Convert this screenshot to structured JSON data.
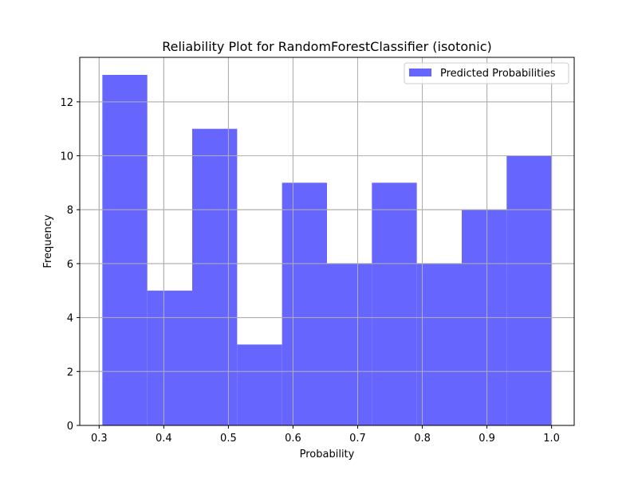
{
  "chart_data": {
    "type": "bar",
    "title": "Reliability Plot for RandomForestClassifier (isotonic)",
    "xlabel": "Probability",
    "ylabel": "Frequency",
    "bin_edges": [
      0.305,
      0.3745,
      0.444,
      0.5135,
      0.583,
      0.6525,
      0.722,
      0.7915,
      0.861,
      0.9305,
      1.0
    ],
    "series": [
      {
        "name": "Predicted Probabilities",
        "values": [
          13,
          5,
          11,
          3,
          9,
          6,
          9,
          6,
          8,
          10
        ]
      }
    ],
    "xlim": [
      0.27,
      1.035
    ],
    "ylim": [
      0,
      13.65
    ],
    "xticks": [
      0.3,
      0.4,
      0.5,
      0.6,
      0.7,
      0.8,
      0.9,
      1.0
    ],
    "xtick_labels": [
      "0.3",
      "0.4",
      "0.5",
      "0.6",
      "0.7",
      "0.8",
      "0.9",
      "1.0"
    ],
    "yticks": [
      0,
      2,
      4,
      6,
      8,
      10,
      12
    ],
    "ytick_labels": [
      "0",
      "2",
      "4",
      "6",
      "8",
      "10",
      "12"
    ],
    "grid": true,
    "legend_position": "top-right",
    "colors": {
      "bar": "#6666ff",
      "grid": "#b0b0b0",
      "axis": "#000000"
    }
  }
}
